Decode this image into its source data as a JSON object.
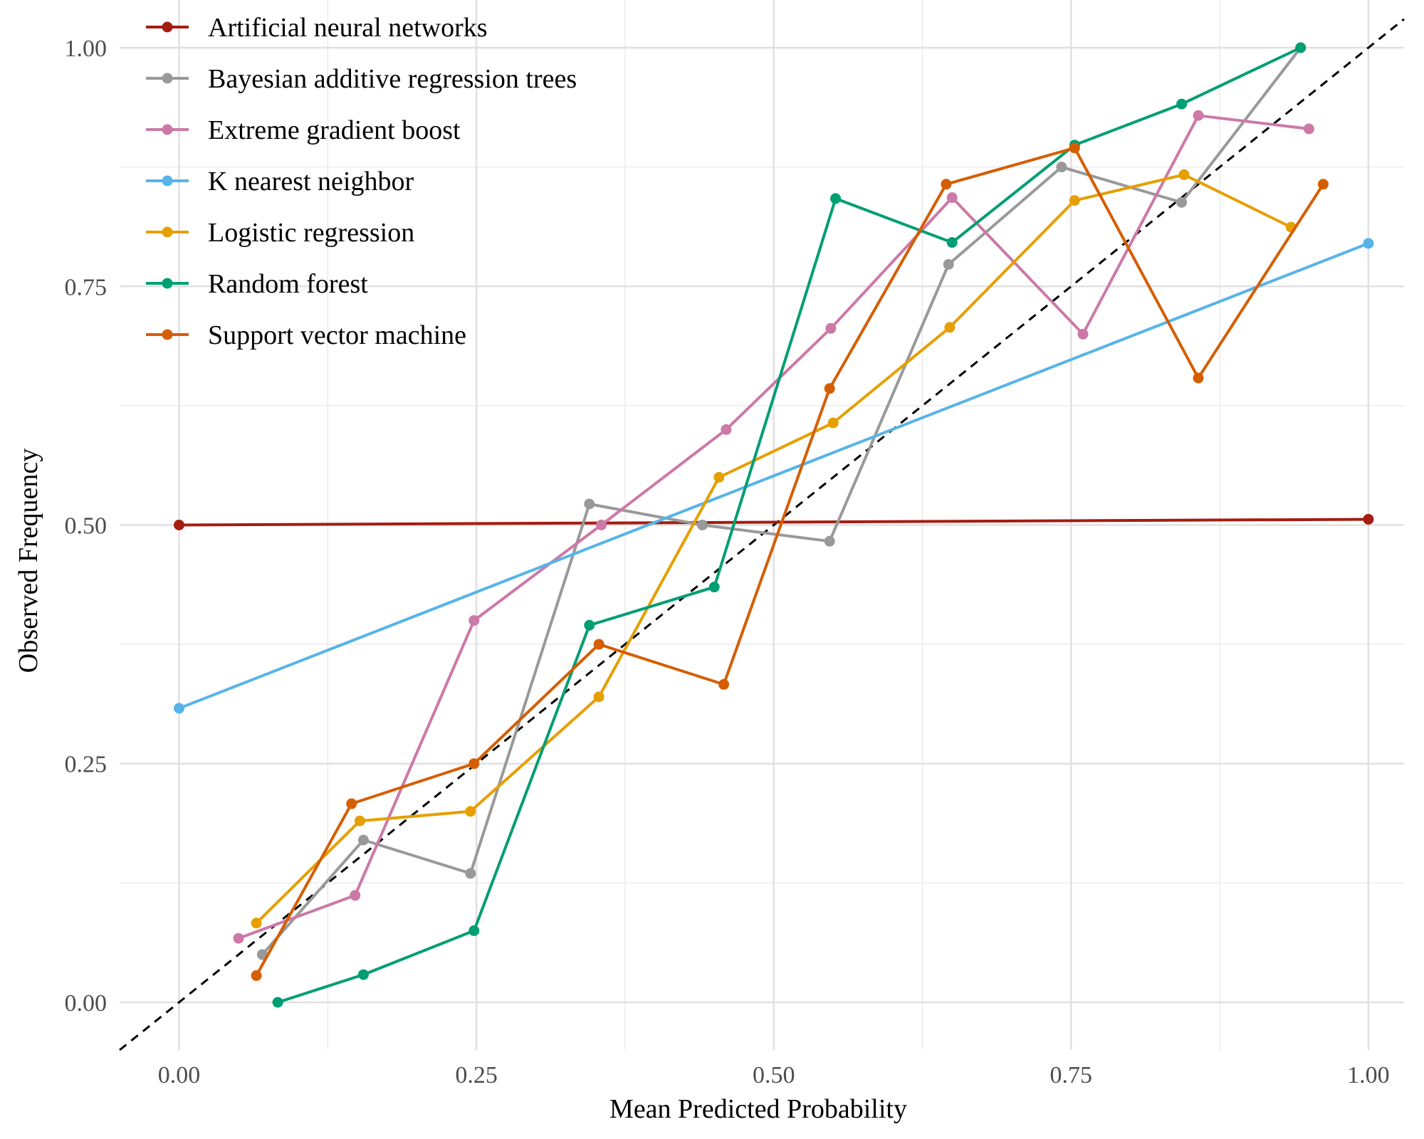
{
  "chart_data": {
    "type": "line",
    "xlabel": "Mean Predicted Probability",
    "ylabel": "Observed Frequency",
    "xlim": [
      -0.05,
      1.03
    ],
    "ylim": [
      -0.05,
      1.05
    ],
    "x_ticks": [
      "0.00",
      "0.25",
      "0.50",
      "0.75",
      "1.00"
    ],
    "y_ticks": [
      "0.00",
      "0.25",
      "0.50",
      "0.75",
      "1.00"
    ],
    "grid": true,
    "legend_position": "top-left",
    "reference_line": {
      "style": "dashed",
      "color": "#000000",
      "from": [
        -0.05,
        -0.05
      ],
      "to": [
        1.03,
        1.03
      ]
    },
    "series": [
      {
        "name": "Artificial neural networks",
        "color": "#A51C10",
        "x": [
          0.0,
          1.0
        ],
        "y": [
          0.5,
          0.506
        ]
      },
      {
        "name": "Bayesian additive regression trees",
        "color": "#999999",
        "x": [
          0.07,
          0.155,
          0.245,
          0.345,
          0.44,
          0.547,
          0.647,
          0.742,
          0.843,
          0.943
        ],
        "y": [
          0.05,
          0.17,
          0.135,
          0.522,
          0.5,
          0.483,
          0.773,
          0.875,
          0.838,
          1.0
        ]
      },
      {
        "name": "Extreme gradient boost",
        "color": "#CC79A7",
        "x": [
          0.05,
          0.148,
          0.248,
          0.355,
          0.46,
          0.548,
          0.65,
          0.76,
          0.857,
          0.95
        ],
        "y": [
          0.067,
          0.112,
          0.4,
          0.5,
          0.6,
          0.706,
          0.843,
          0.7,
          0.929,
          0.915
        ]
      },
      {
        "name": "K nearest neighbor",
        "color": "#56B4E9",
        "x": [
          0.0,
          1.0
        ],
        "y": [
          0.308,
          0.795
        ]
      },
      {
        "name": "Logistic regression",
        "color": "#E69F00",
        "x": [
          0.065,
          0.152,
          0.245,
          0.353,
          0.454,
          0.55,
          0.648,
          0.753,
          0.845,
          0.935
        ],
        "y": [
          0.083,
          0.19,
          0.2,
          0.32,
          0.55,
          0.607,
          0.707,
          0.84,
          0.867,
          0.812
        ]
      },
      {
        "name": "Random forest",
        "color": "#009E73",
        "x": [
          0.083,
          0.155,
          0.248,
          0.345,
          0.45,
          0.552,
          0.65,
          0.753,
          0.843,
          0.943
        ],
        "y": [
          0.0,
          0.029,
          0.075,
          0.395,
          0.435,
          0.842,
          0.796,
          0.898,
          0.941,
          1.0
        ]
      },
      {
        "name": "Support vector machine",
        "color": "#D55E00",
        "x": [
          0.065,
          0.145,
          0.248,
          0.353,
          0.458,
          0.547,
          0.645,
          0.753,
          0.857,
          0.962
        ],
        "y": [
          0.028,
          0.208,
          0.25,
          0.375,
          0.333,
          0.643,
          0.857,
          0.895,
          0.654,
          0.857
        ]
      }
    ]
  }
}
